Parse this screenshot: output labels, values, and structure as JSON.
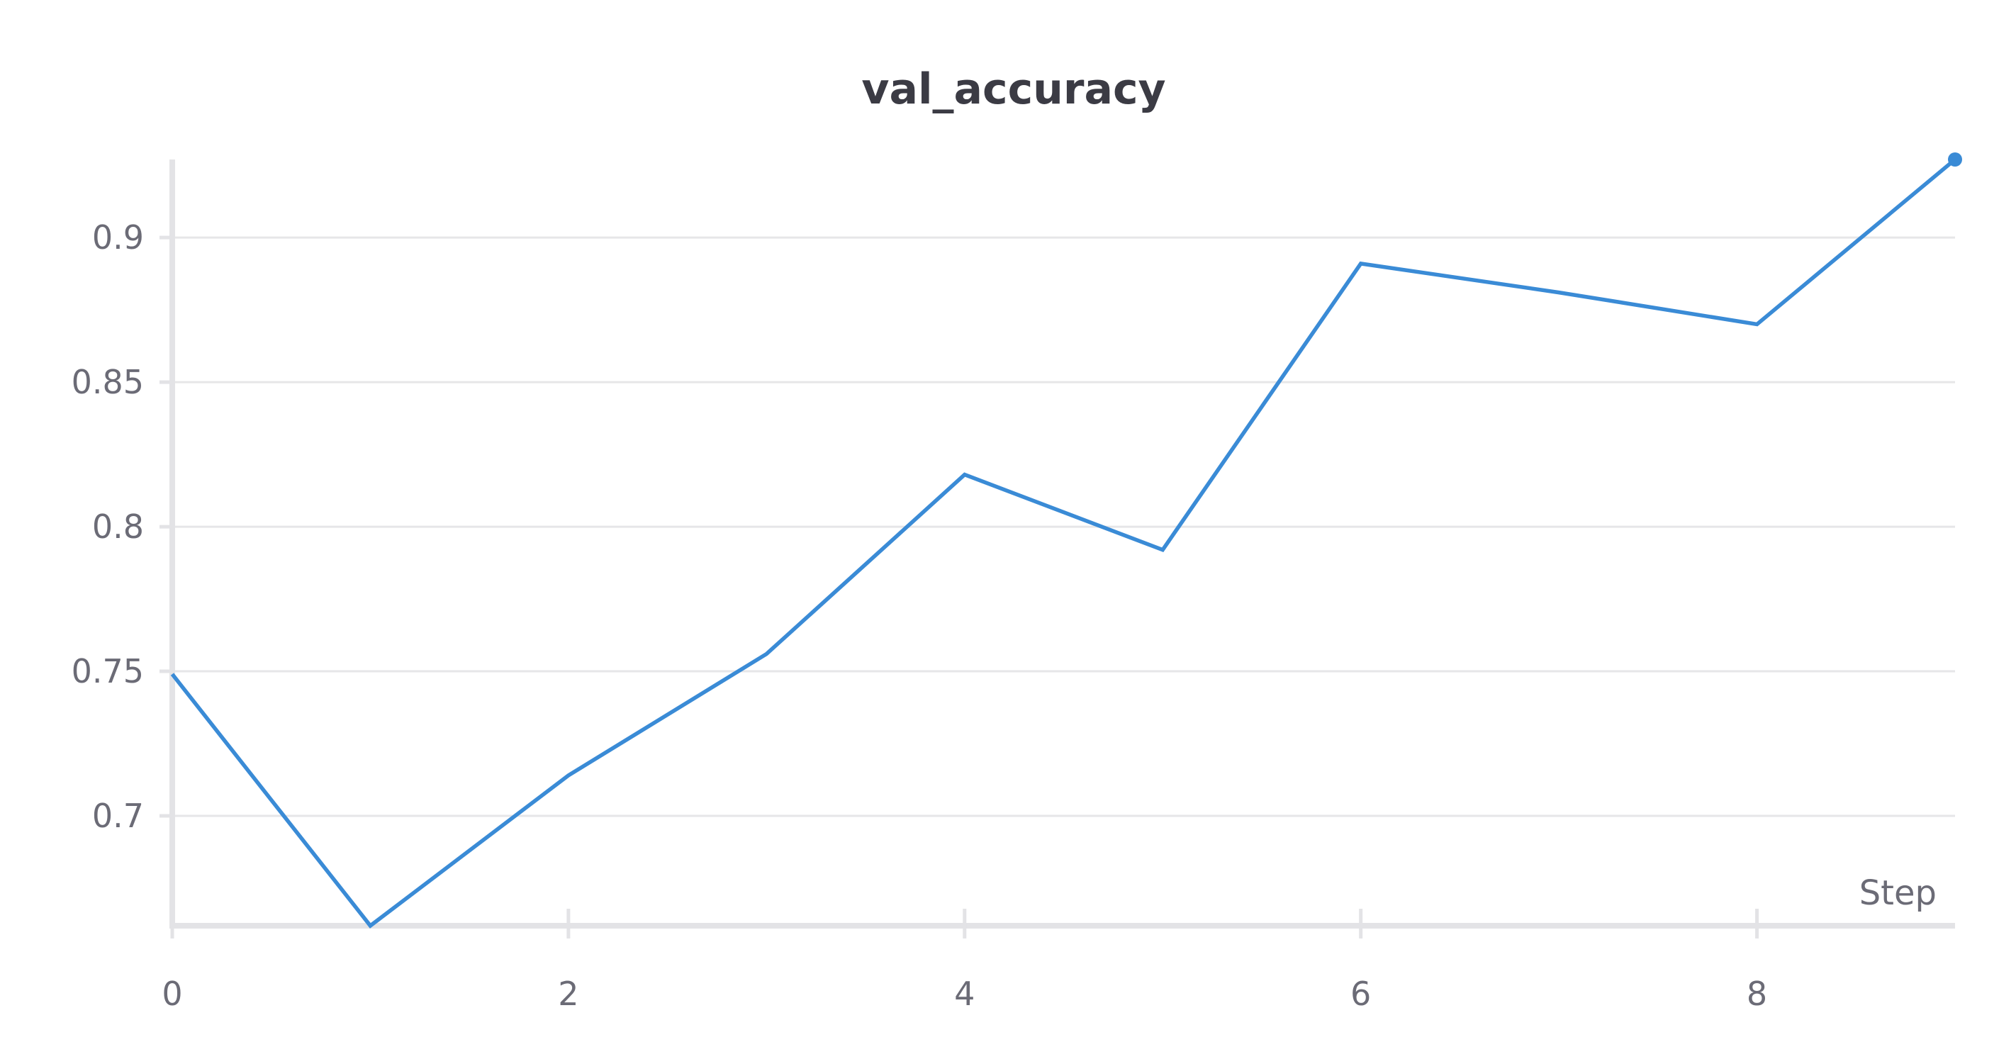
{
  "chart_data": {
    "type": "line",
    "title": "val_accuracy",
    "xlabel": "Step",
    "ylabel": "",
    "x_ticks": [
      "0",
      "2",
      "4",
      "6",
      "8"
    ],
    "y_ticks": [
      "0.9",
      "0.85",
      "0.8",
      "0.75",
      "0.7"
    ],
    "x_tick_values": [
      0,
      2,
      4,
      6,
      8
    ],
    "y_tick_values": [
      0.9,
      0.85,
      0.8,
      0.75,
      0.7
    ],
    "xlim": [
      0,
      9
    ],
    "ylim": [
      0.662,
      0.927
    ],
    "grid": true,
    "series": [
      {
        "color": "#3a8bd6",
        "x": [
          0,
          1,
          2,
          3,
          4,
          5,
          6,
          7,
          8,
          9
        ],
        "y": [
          0.749,
          0.662,
          0.714,
          0.756,
          0.818,
          0.792,
          0.891,
          0.881,
          0.87,
          0.927
        ],
        "last_point_marker": true
      }
    ]
  }
}
